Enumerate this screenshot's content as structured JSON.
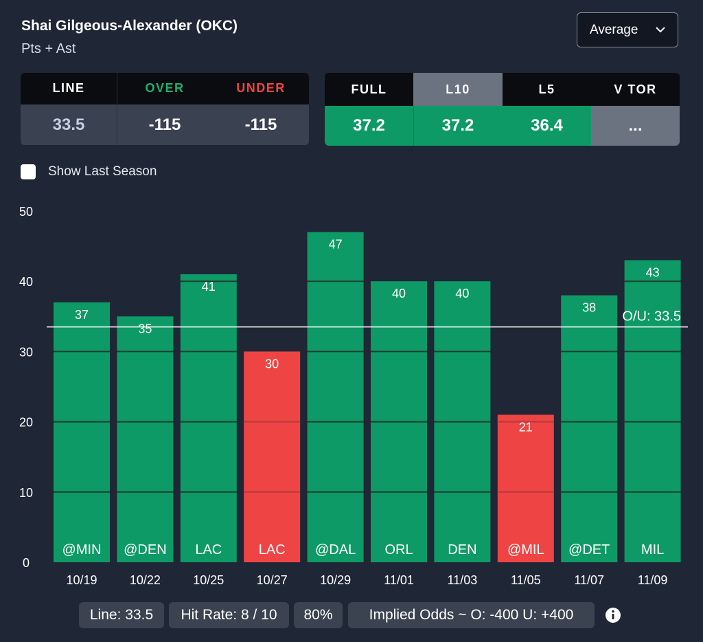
{
  "header": {
    "player": "Shai Gilgeous-Alexander (OKC)",
    "stat": "Pts + Ast",
    "dropdown_value": "Average"
  },
  "line_table": {
    "headers": [
      "LINE",
      "OVER",
      "UNDER"
    ],
    "values": [
      "33.5",
      "-115",
      "-115"
    ],
    "colors": {
      "over": "#1db170",
      "under": "#ef4444",
      "line_value": "#c7cde0"
    }
  },
  "averages": {
    "tabs": [
      "FULL",
      "L10",
      "L5",
      "V TOR"
    ],
    "selected_tab": "L10",
    "values": [
      "37.2",
      "37.2",
      "36.4",
      "..."
    ]
  },
  "show_last_season": {
    "label": "Show Last Season",
    "checked": false
  },
  "chart_data": {
    "type": "bar",
    "categories": [
      "10/19",
      "10/22",
      "10/25",
      "10/27",
      "10/29",
      "11/01",
      "11/03",
      "11/05",
      "11/07",
      "11/09"
    ],
    "opponents": [
      "@MIN",
      "@DEN",
      "LAC",
      "LAC",
      "@DAL",
      "ORL",
      "DEN",
      "@MIL",
      "@DET",
      "MIL"
    ],
    "values": [
      37,
      35,
      41,
      30,
      47,
      40,
      40,
      21,
      38,
      43
    ],
    "ylim": [
      0,
      50
    ],
    "yticks": [
      0,
      10,
      20,
      30,
      40,
      50
    ],
    "reference_line": {
      "value": 33.5,
      "label": "O/U: 33.5"
    },
    "colors": {
      "over": "#0e9a66",
      "under": "#ef4444",
      "grid": "#173f2e",
      "line": "#ffffff"
    },
    "grid": true,
    "title": "",
    "xlabel": "",
    "ylabel": ""
  },
  "footer": {
    "line": "Line: 33.5",
    "hit_rate": "Hit Rate: 8 / 10",
    "hit_pct": "80%",
    "implied_odds": "Implied Odds ~ O: -400 U: +400",
    "info_icon": "info-circle-icon"
  }
}
